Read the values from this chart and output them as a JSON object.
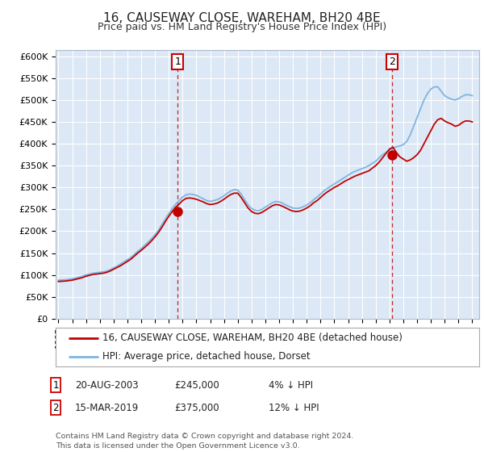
{
  "title": "16, CAUSEWAY CLOSE, WAREHAM, BH20 4BE",
  "subtitle": "Price paid vs. HM Land Registry's House Price Index (HPI)",
  "plot_bg_color": "#dce8f5",
  "fig_bg_color": "#ffffff",
  "hpi_color": "#7eb5e0",
  "price_color": "#c00000",
  "dashed_line_color": "#c00000",
  "ytick_labels": [
    "£0",
    "£50K",
    "£100K",
    "£150K",
    "£200K",
    "£250K",
    "£300K",
    "£350K",
    "£400K",
    "£450K",
    "£500K",
    "£550K",
    "£600K"
  ],
  "ytick_values": [
    0,
    50000,
    100000,
    150000,
    200000,
    250000,
    300000,
    350000,
    400000,
    450000,
    500000,
    550000,
    600000
  ],
  "ylim": [
    0,
    615000
  ],
  "sale1_x": 2003.64,
  "sale2_x": 2019.21,
  "sale1_price": 245000,
  "sale2_price": 375000,
  "legend_line1": "16, CAUSEWAY CLOSE, WAREHAM, BH20 4BE (detached house)",
  "legend_line2": "HPI: Average price, detached house, Dorset",
  "footnote1": "Contains HM Land Registry data © Crown copyright and database right 2024.",
  "footnote2": "This data is licensed under the Open Government Licence v3.0.",
  "xstart": 1994.8,
  "xend": 2025.5,
  "hpi_x": [
    1995.0,
    1995.25,
    1995.5,
    1995.75,
    1996.0,
    1996.25,
    1996.5,
    1996.75,
    1997.0,
    1997.25,
    1997.5,
    1997.75,
    1998.0,
    1998.25,
    1998.5,
    1998.75,
    1999.0,
    1999.25,
    1999.5,
    1999.75,
    2000.0,
    2000.25,
    2000.5,
    2000.75,
    2001.0,
    2001.25,
    2001.5,
    2001.75,
    2002.0,
    2002.25,
    2002.5,
    2002.75,
    2003.0,
    2003.25,
    2003.5,
    2003.75,
    2004.0,
    2004.25,
    2004.5,
    2004.75,
    2005.0,
    2005.25,
    2005.5,
    2005.75,
    2006.0,
    2006.25,
    2006.5,
    2006.75,
    2007.0,
    2007.25,
    2007.5,
    2007.75,
    2008.0,
    2008.25,
    2008.5,
    2008.75,
    2009.0,
    2009.25,
    2009.5,
    2009.75,
    2010.0,
    2010.25,
    2010.5,
    2010.75,
    2011.0,
    2011.25,
    2011.5,
    2011.75,
    2012.0,
    2012.25,
    2012.5,
    2012.75,
    2013.0,
    2013.25,
    2013.5,
    2013.75,
    2014.0,
    2014.25,
    2014.5,
    2014.75,
    2015.0,
    2015.25,
    2015.5,
    2015.75,
    2016.0,
    2016.25,
    2016.5,
    2016.75,
    2017.0,
    2017.25,
    2017.5,
    2017.75,
    2018.0,
    2018.25,
    2018.5,
    2018.75,
    2019.0,
    2019.25,
    2019.5,
    2019.75,
    2020.0,
    2020.25,
    2020.5,
    2020.75,
    2021.0,
    2021.25,
    2021.5,
    2021.75,
    2022.0,
    2022.25,
    2022.5,
    2022.75,
    2023.0,
    2023.25,
    2023.5,
    2023.75,
    2024.0,
    2024.25,
    2024.5,
    2024.75,
    2025.0
  ],
  "hpi_y": [
    88000,
    88500,
    89000,
    90000,
    91000,
    93000,
    95000,
    97000,
    100000,
    102000,
    104000,
    105000,
    106000,
    107000,
    109000,
    112000,
    116000,
    120000,
    125000,
    130000,
    135000,
    140000,
    147000,
    154000,
    160000,
    168000,
    175000,
    183000,
    192000,
    202000,
    215000,
    228000,
    240000,
    252000,
    262000,
    270000,
    278000,
    283000,
    285000,
    284000,
    282000,
    278000,
    274000,
    270000,
    268000,
    270000,
    272000,
    276000,
    281000,
    287000,
    292000,
    295000,
    294000,
    285000,
    272000,
    260000,
    252000,
    248000,
    247000,
    250000,
    255000,
    260000,
    265000,
    268000,
    267000,
    264000,
    260000,
    256000,
    253000,
    252000,
    253000,
    256000,
    260000,
    265000,
    272000,
    278000,
    285000,
    292000,
    298000,
    303000,
    308000,
    313000,
    318000,
    323000,
    328000,
    333000,
    337000,
    340000,
    343000,
    346000,
    350000,
    355000,
    360000,
    368000,
    375000,
    380000,
    385000,
    390000,
    393000,
    395000,
    398000,
    405000,
    420000,
    440000,
    460000,
    480000,
    500000,
    515000,
    525000,
    530000,
    530000,
    520000,
    510000,
    505000,
    502000,
    500000,
    503000,
    508000,
    512000,
    512000,
    510000
  ],
  "red_x": [
    1995.0,
    1995.25,
    1995.5,
    1995.75,
    1996.0,
    1996.25,
    1996.5,
    1996.75,
    1997.0,
    1997.25,
    1997.5,
    1997.75,
    1998.0,
    1998.25,
    1998.5,
    1998.75,
    1999.0,
    1999.25,
    1999.5,
    1999.75,
    2000.0,
    2000.25,
    2000.5,
    2000.75,
    2001.0,
    2001.25,
    2001.5,
    2001.75,
    2002.0,
    2002.25,
    2002.5,
    2002.75,
    2003.0,
    2003.25,
    2003.5,
    2003.75,
    2004.0,
    2004.25,
    2004.5,
    2004.75,
    2005.0,
    2005.25,
    2005.5,
    2005.75,
    2006.0,
    2006.25,
    2006.5,
    2006.75,
    2007.0,
    2007.25,
    2007.5,
    2007.75,
    2008.0,
    2008.25,
    2008.5,
    2008.75,
    2009.0,
    2009.25,
    2009.5,
    2009.75,
    2010.0,
    2010.25,
    2010.5,
    2010.75,
    2011.0,
    2011.25,
    2011.5,
    2011.75,
    2012.0,
    2012.25,
    2012.5,
    2012.75,
    2013.0,
    2013.25,
    2013.5,
    2013.75,
    2014.0,
    2014.25,
    2014.5,
    2014.75,
    2015.0,
    2015.25,
    2015.5,
    2015.75,
    2016.0,
    2016.25,
    2016.5,
    2016.75,
    2017.0,
    2017.25,
    2017.5,
    2017.75,
    2018.0,
    2018.25,
    2018.5,
    2018.75,
    2019.0,
    2019.25,
    2019.5,
    2019.75,
    2020.0,
    2020.25,
    2020.5,
    2020.75,
    2021.0,
    2021.25,
    2021.5,
    2021.75,
    2022.0,
    2022.25,
    2022.5,
    2022.75,
    2023.0,
    2023.25,
    2023.5,
    2023.75,
    2024.0,
    2024.25,
    2024.5,
    2024.75,
    2025.0
  ],
  "red_y": [
    85000,
    85500,
    86000,
    87000,
    88000,
    90000,
    92000,
    94000,
    97000,
    99000,
    101000,
    102000,
    103000,
    104000,
    106000,
    109000,
    113000,
    117000,
    121000,
    126000,
    131000,
    136000,
    143000,
    150000,
    156000,
    163000,
    170000,
    178000,
    187000,
    197000,
    209000,
    222000,
    234000,
    245000,
    255000,
    262000,
    270000,
    275000,
    276000,
    275000,
    273000,
    270000,
    267000,
    263000,
    261000,
    262000,
    264000,
    268000,
    273000,
    279000,
    284000,
    287000,
    287000,
    277000,
    265000,
    253000,
    245000,
    241000,
    240000,
    243000,
    248000,
    253000,
    258000,
    261000,
    260000,
    257000,
    253000,
    249000,
    246000,
    245000,
    246000,
    249000,
    253000,
    258000,
    265000,
    270000,
    277000,
    284000,
    290000,
    295000,
    300000,
    304000,
    309000,
    314000,
    318000,
    322000,
    326000,
    329000,
    332000,
    335000,
    338000,
    344000,
    350000,
    358000,
    368000,
    378000,
    388000,
    392000,
    380000,
    370000,
    365000,
    360000,
    363000,
    368000,
    375000,
    385000,
    400000,
    415000,
    430000,
    445000,
    455000,
    458000,
    452000,
    448000,
    445000,
    440000,
    442000,
    448000,
    452000,
    452000,
    450000
  ]
}
